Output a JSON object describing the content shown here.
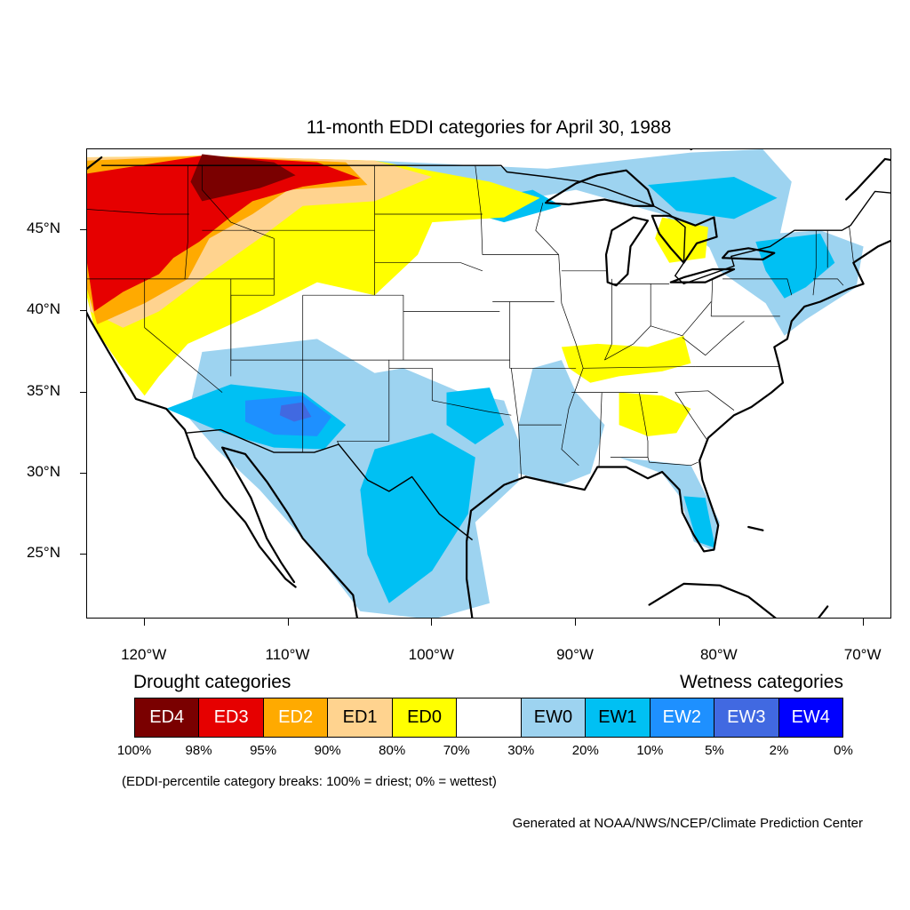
{
  "title": "11-month EDDI categories for April 30, 1988",
  "map": {
    "projection": "lat-lon",
    "lon_range": [
      -124,
      -68
    ],
    "lat_range": [
      21,
      50
    ],
    "lat_ticks": [
      {
        "value": 45,
        "label": "45°N"
      },
      {
        "value": 40,
        "label": "40°N"
      },
      {
        "value": 35,
        "label": "35°N"
      },
      {
        "value": 30,
        "label": "30°N"
      },
      {
        "value": 25,
        "label": "25°N"
      }
    ],
    "lon_ticks": [
      {
        "value": -120,
        "label": "120°W"
      },
      {
        "value": -110,
        "label": "110°W"
      },
      {
        "value": -100,
        "label": "100°W"
      },
      {
        "value": -90,
        "label": "90°W"
      },
      {
        "value": -80,
        "label": "80°W"
      },
      {
        "value": -70,
        "label": "70°W"
      }
    ],
    "colors": {
      "ED4": "#7a0000",
      "ED3": "#e60000",
      "ED2": "#ffaa00",
      "ED1": "#ffd38f",
      "ED0": "#ffff00",
      "EW0": "#9dd3f0",
      "EW1": "#00c0f3",
      "EW2": "#1e90ff",
      "EW3": "#4169e1",
      "EW4": "#0000ff"
    }
  },
  "legend": {
    "drought_label": "Drought categories",
    "wetness_label": "Wetness categories",
    "categories": [
      {
        "label": "ED4",
        "color": "#7a0000",
        "text_color": "#ffffff"
      },
      {
        "label": "ED3",
        "color": "#e60000",
        "text_color": "#ffffff"
      },
      {
        "label": "ED2",
        "color": "#ffaa00",
        "text_color": "#ffffff"
      },
      {
        "label": "ED1",
        "color": "#ffd38f",
        "text_color": "#000000"
      },
      {
        "label": "ED0",
        "color": "#ffff00",
        "text_color": "#000000"
      },
      {
        "label": "",
        "color": "#ffffff",
        "text_color": "#000000"
      },
      {
        "label": "EW0",
        "color": "#9dd3f0",
        "text_color": "#000000"
      },
      {
        "label": "EW1",
        "color": "#00c0f3",
        "text_color": "#000000"
      },
      {
        "label": "EW2",
        "color": "#1e90ff",
        "text_color": "#ffffff"
      },
      {
        "label": "EW3",
        "color": "#4169e1",
        "text_color": "#ffffff"
      },
      {
        "label": "EW4",
        "color": "#0000ff",
        "text_color": "#ffffff"
      }
    ],
    "breaks": [
      "100%",
      "98%",
      "95%",
      "90%",
      "80%",
      "70%",
      "30%",
      "20%",
      "10%",
      "5%",
      "2%",
      "0%"
    ]
  },
  "note": "(EDDI-percentile category breaks: 100% = driest; 0% = wettest)",
  "credit": "Generated at NOAA/NWS/NCEP/Climate Prediction Center"
}
